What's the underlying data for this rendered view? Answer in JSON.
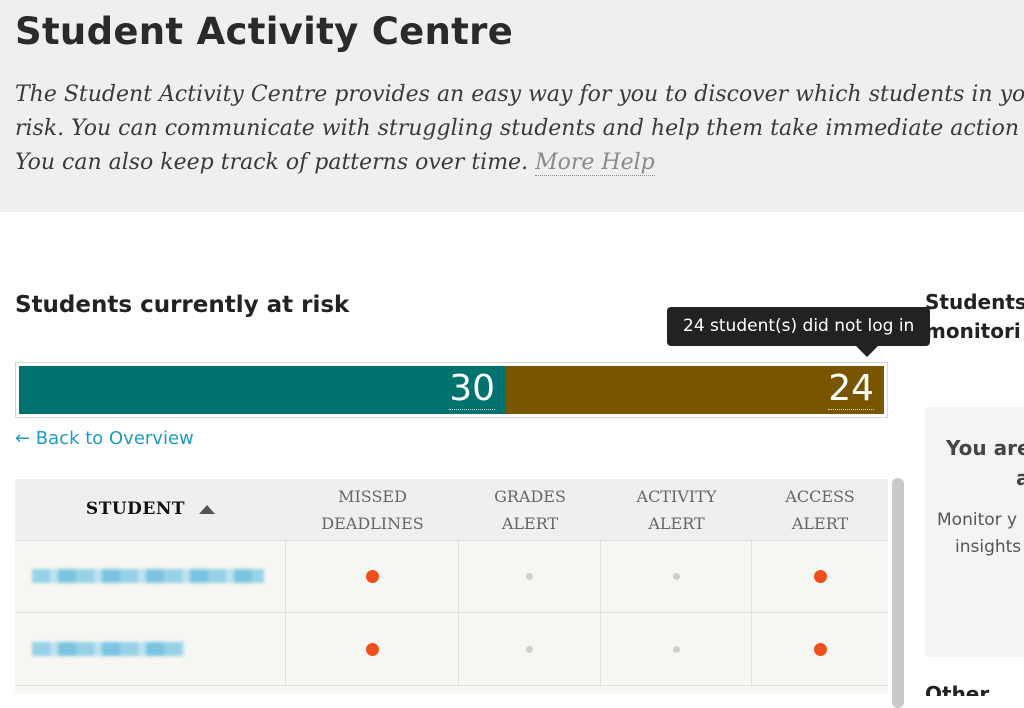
{
  "header": {
    "title": "Student Activity Centre",
    "description_lines": [
      "The Student Activity Centre provides an easy way for you to discover which students in yo",
      "risk. You can communicate with struggling students and help them take immediate action",
      "You can also keep track of patterns over time."
    ],
    "more_help_label": "More Help"
  },
  "risk_section": {
    "title": "Students currently at risk",
    "segments": [
      {
        "value": "30",
        "color": "#00736f"
      },
      {
        "value": "24",
        "color": "#7a5500"
      }
    ],
    "tooltip": "24 student(s) did not log in",
    "back_link": "← Back to Overview"
  },
  "table": {
    "columns": [
      {
        "line1": "STUDENT",
        "line2": ""
      },
      {
        "line1": "MISSED",
        "line2": "DEADLINES"
      },
      {
        "line1": "GRADES",
        "line2": "ALERT"
      },
      {
        "line1": "ACTIVITY",
        "line2": "ALERT"
      },
      {
        "line1": "ACCESS",
        "line2": "ALERT"
      }
    ],
    "rows": [
      {
        "missed_deadlines": true,
        "grades_alert": false,
        "activity_alert": false,
        "access_alert": true
      },
      {
        "missed_deadlines": true,
        "grades_alert": false,
        "activity_alert": false,
        "access_alert": true
      }
    ],
    "alert_color": "#f04e1a"
  },
  "sidebar": {
    "title_line1": "Students",
    "title_line2": "monitori",
    "card_title_line1": "You are",
    "card_title_line2": "a",
    "card_text_line1": "Monitor y",
    "card_text_line2": "insights",
    "bottom_partial": "Other"
  }
}
